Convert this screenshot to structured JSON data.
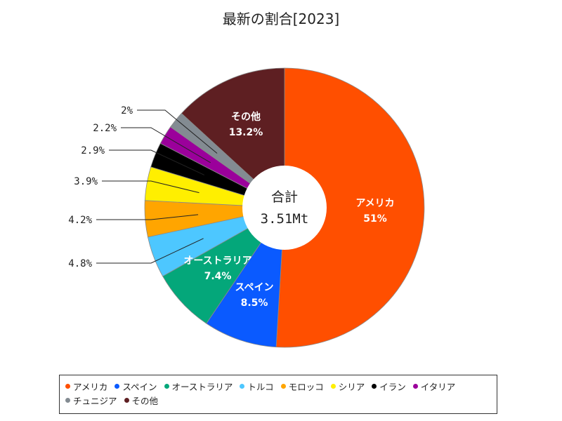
{
  "chart_data": {
    "type": "pie",
    "style": "donut",
    "title": "最新の割合[2023]",
    "center_label": "合計",
    "total": "3.51Mt",
    "slices": [
      {
        "name": "アメリカ",
        "value": 51,
        "label": "51%",
        "color": "#ff4f00"
      },
      {
        "name": "スペイン",
        "value": 8.5,
        "label": "8.5%",
        "color": "#0a5aff"
      },
      {
        "name": "オーストラリア",
        "value": 7.4,
        "label": "7.4%",
        "color": "#04a77a"
      },
      {
        "name": "トルコ",
        "value": 4.8,
        "label": "4.8%",
        "color": "#4dc7ff"
      },
      {
        "name": "モロッコ",
        "value": 4.2,
        "label": "4.2%",
        "color": "#ffa500"
      },
      {
        "name": "シリア",
        "value": 3.9,
        "label": "3.9%",
        "color": "#ffef00"
      },
      {
        "name": "イラン",
        "value": 2.9,
        "label": "2.9%",
        "color": "#000000"
      },
      {
        "name": "イタリア",
        "value": 2.2,
        "label": "2.2%",
        "color": "#9b009b"
      },
      {
        "name": "チュニジア",
        "value": 2,
        "label": "2%",
        "color": "#838b92"
      },
      {
        "name": "その他",
        "value": 13.2,
        "label": "13.2%",
        "color": "#5e1f22"
      }
    ],
    "legend_position": "bottom"
  }
}
